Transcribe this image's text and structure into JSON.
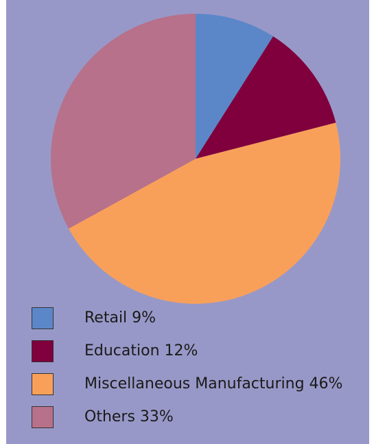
{
  "colors": {
    "background": "#9898c8"
  },
  "chart_data": {
    "type": "pie",
    "title": "",
    "slices": [
      {
        "label": "Retail 9%",
        "value": 9,
        "color": "#5b87c8"
      },
      {
        "label": "Education 12%",
        "value": 12,
        "color": "#7f003c"
      },
      {
        "label": "Miscellaneous Manufacturing 46%",
        "value": 46,
        "color": "#f8a05a"
      },
      {
        "label": "Others 33%",
        "value": 33,
        "color": "#b7718a"
      }
    ],
    "start": "12 o'clock",
    "direction": "clockwise",
    "legend_placement": "bottom-left"
  }
}
